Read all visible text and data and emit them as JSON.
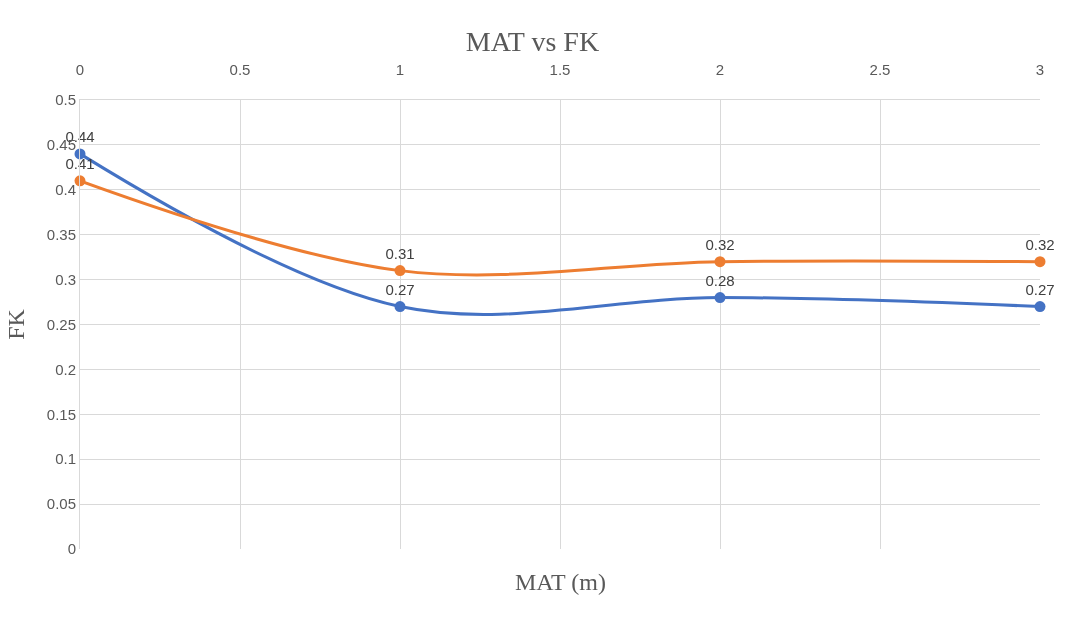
{
  "chart_data": {
    "type": "line",
    "title": "MAT vs FK",
    "xlabel": "MAT (m)",
    "ylabel": "FK",
    "x": [
      0,
      1,
      2,
      3
    ],
    "series": [
      {
        "color": "#4472c4",
        "values": [
          0.44,
          0.27,
          0.28,
          0.27
        ]
      },
      {
        "color": "#ed7d31",
        "values": [
          0.41,
          0.31,
          0.32,
          0.32
        ]
      }
    ],
    "xlim": [
      0,
      3
    ],
    "xticks": [
      0,
      0.5,
      1,
      1.5,
      2,
      2.5,
      3
    ],
    "ylim": [
      0,
      0.5
    ],
    "yticks": [
      0,
      0.05,
      0.1,
      0.15,
      0.2,
      0.25,
      0.3,
      0.35,
      0.4,
      0.45,
      0.5
    ],
    "grid": true,
    "marker": "circle",
    "line_style": "solid",
    "data_labels": true
  }
}
